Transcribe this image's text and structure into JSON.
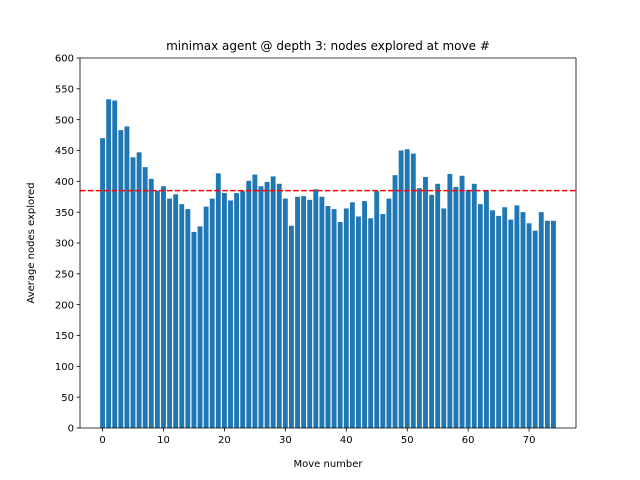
{
  "chart_data": {
    "type": "bar",
    "title": "minimax agent @ depth 3: nodes explored at move #",
    "xlabel": "Move number",
    "ylabel": "Average nodes explored",
    "xlim": [
      -3.7,
      77.7
    ],
    "ylim": [
      0,
      600
    ],
    "xticks": [
      0,
      10,
      20,
      30,
      40,
      50,
      60,
      70
    ],
    "yticks": [
      0,
      50,
      100,
      150,
      200,
      250,
      300,
      350,
      400,
      450,
      500,
      550,
      600
    ],
    "bar_color": "#1f77b4",
    "reference_line": {
      "y": 385,
      "color": "#ff0000",
      "style": "dashed"
    },
    "grid": false,
    "x": [
      0,
      1,
      2,
      3,
      4,
      5,
      6,
      7,
      8,
      9,
      10,
      11,
      12,
      13,
      14,
      15,
      16,
      17,
      18,
      19,
      20,
      21,
      22,
      23,
      24,
      25,
      26,
      27,
      28,
      29,
      30,
      31,
      32,
      33,
      34,
      35,
      36,
      37,
      38,
      39,
      40,
      41,
      42,
      43,
      44,
      45,
      46,
      47,
      48,
      49,
      50,
      51,
      52,
      53,
      54,
      55,
      56,
      57,
      58,
      59,
      60,
      61,
      62,
      63,
      64,
      65,
      66,
      67,
      68,
      69,
      70,
      71,
      72,
      73,
      74
    ],
    "values": [
      470,
      533,
      531,
      483,
      489,
      439,
      447,
      423,
      404,
      385,
      392,
      372,
      379,
      363,
      355,
      318,
      327,
      359,
      372,
      413,
      381,
      369,
      381,
      384,
      401,
      411,
      392,
      399,
      408,
      396,
      372,
      328,
      375,
      376,
      370,
      387,
      375,
      360,
      355,
      334,
      356,
      366,
      343,
      368,
      340,
      384,
      347,
      372,
      410,
      450,
      452,
      445,
      389,
      407,
      378,
      396,
      356,
      412,
      391,
      409,
      386,
      396,
      363,
      385,
      353,
      344,
      358,
      338,
      361,
      350,
      332,
      320,
      350,
      336,
      336
    ]
  }
}
